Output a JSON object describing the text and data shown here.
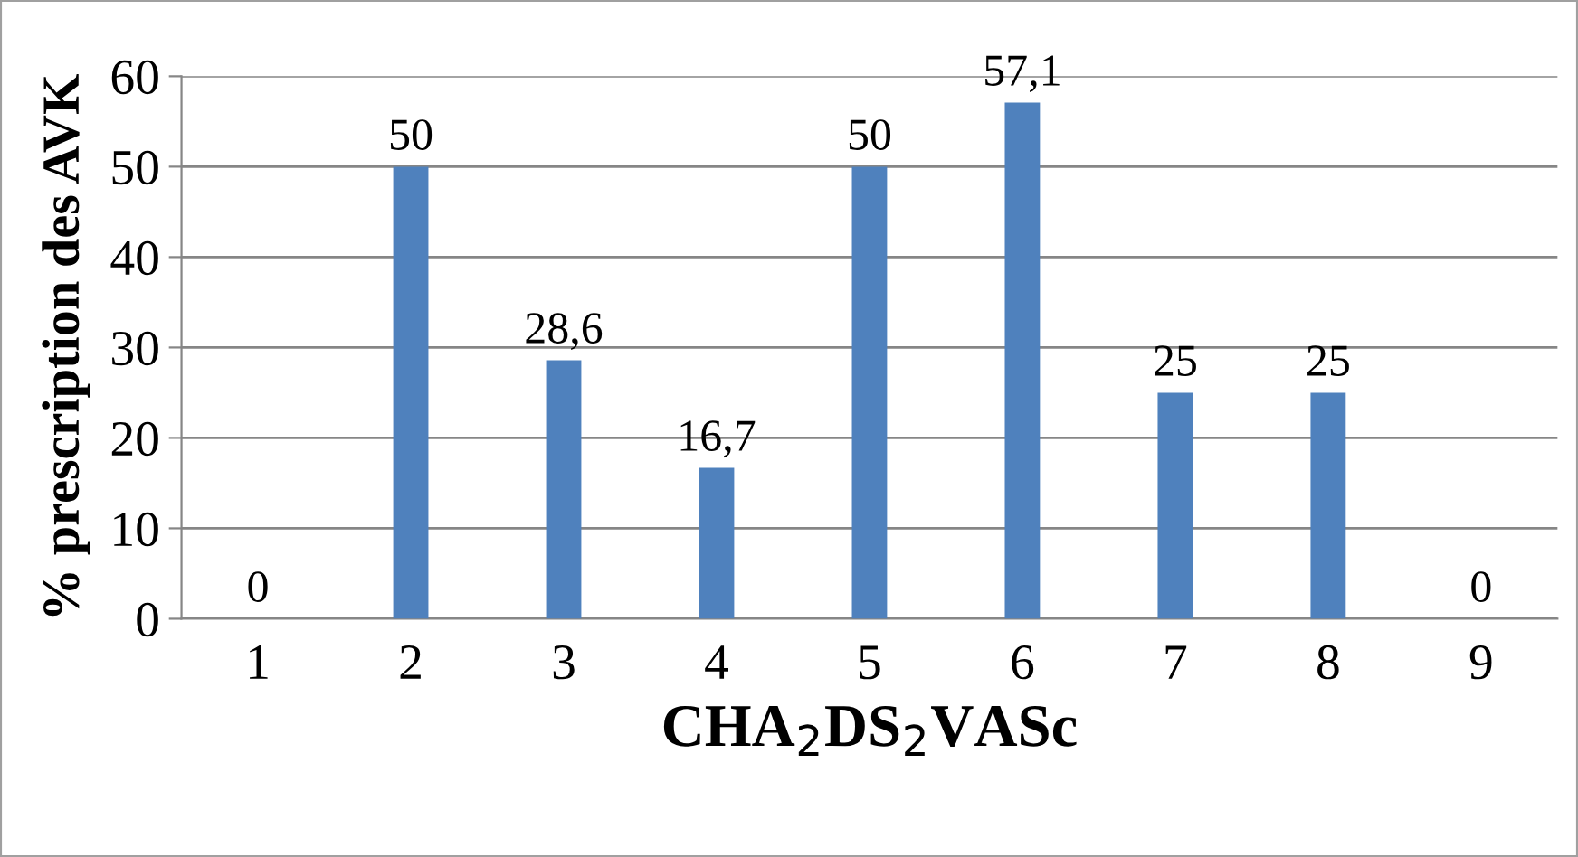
{
  "chart_data": {
    "type": "bar",
    "xlabel": "CHA$_{2}$DS$_{2}$VASc",
    "ylabel": "% prescription des AVK",
    "categories": [
      "1",
      "2",
      "3",
      "4",
      "5",
      "6",
      "7",
      "8",
      "9"
    ],
    "values": [
      0,
      50,
      28.6,
      16.7,
      50,
      57.1,
      25,
      25,
      0
    ],
    "value_labels": [
      "0",
      "50",
      "28,6",
      "16,7",
      "50",
      "57,1",
      "25",
      "25",
      "0"
    ],
    "color": "#4f81bd",
    "ylim": [
      0,
      60
    ],
    "yticks": [
      0,
      10,
      20,
      30,
      40,
      50,
      60
    ],
    "grid": "y",
    "legend": false
  }
}
